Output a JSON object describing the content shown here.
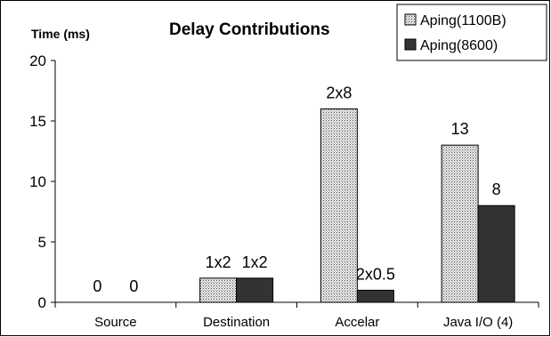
{
  "chart_data": {
    "type": "bar",
    "title": "Delay Contributions",
    "ylabel": "Time (ms)",
    "xlabel": "",
    "ylim": [
      0,
      20
    ],
    "yticks": [
      0,
      5,
      10,
      15,
      20
    ],
    "grid": false,
    "legend_position": "top-right",
    "categories": [
      "Source",
      "Destination",
      "Accelar",
      "Java I/O (4)"
    ],
    "series": [
      {
        "name": "Aping(1100B)",
        "values": [
          0,
          2,
          16,
          13
        ],
        "labels": [
          "0",
          "1x2",
          "2x8",
          "13"
        ],
        "color": "#c8c8c8",
        "pattern": "dotted"
      },
      {
        "name": "Aping(8600)",
        "values": [
          0,
          2,
          1,
          8
        ],
        "labels": [
          "0",
          "1x2",
          "2x0.5",
          "8"
        ],
        "color": "#333333",
        "pattern": "solid"
      }
    ]
  }
}
